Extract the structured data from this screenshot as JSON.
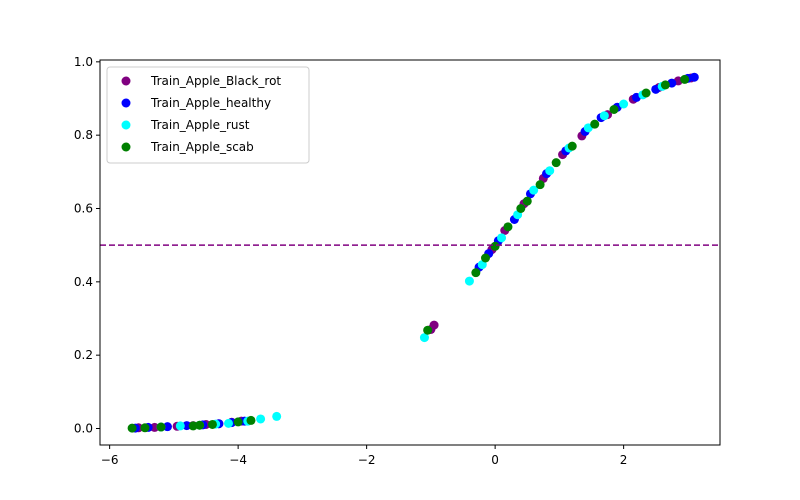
{
  "chart_data": {
    "type": "scatter",
    "xlim": [
      -6.15,
      3.5
    ],
    "ylim": [
      -0.045,
      1.005
    ],
    "xticks": [
      -6,
      -4,
      -2,
      0,
      2
    ],
    "xtick_labels": [
      "−6",
      "−4",
      "−2",
      "0",
      "2"
    ],
    "yticks": [
      0.0,
      0.2,
      0.4,
      0.6,
      0.8,
      1.0
    ],
    "ytick_labels": [
      "0.0",
      "0.2",
      "0.4",
      "0.6",
      "0.8",
      "1.0"
    ],
    "grid": false,
    "legend_position": "top-left",
    "reference_line": {
      "y": 0.5,
      "style": "dashed",
      "color": "#800080"
    },
    "series": [
      {
        "name": "Train_Apple_Black_rot",
        "color": "#800080",
        "x": [
          -5.55,
          -5.3,
          -4.95,
          -4.7,
          -4.5,
          -4.3,
          -4.1,
          -3.95,
          -0.95,
          -1.0,
          -0.05,
          0.15,
          0.45,
          0.75,
          1.05,
          1.35,
          1.75,
          2.15,
          2.55,
          2.85,
          3.05
        ],
        "y": [
          0.002,
          0.003,
          0.006,
          0.008,
          0.011,
          0.013,
          0.017,
          0.02,
          0.282,
          0.27,
          0.488,
          0.54,
          0.613,
          0.682,
          0.747,
          0.798,
          0.856,
          0.898,
          0.93,
          0.948,
          0.956
        ]
      },
      {
        "name": "Train_Apple_healthy",
        "color": "#0000ff",
        "x": [
          -5.6,
          -5.4,
          -5.1,
          -4.8,
          -4.55,
          -4.3,
          -4.1,
          -3.9,
          -0.25,
          -0.1,
          0.05,
          0.3,
          0.55,
          0.8,
          1.1,
          1.4,
          1.65,
          1.9,
          2.2,
          2.5,
          2.75,
          3.0,
          3.1
        ],
        "y": [
          0.001,
          0.003,
          0.005,
          0.008,
          0.01,
          0.013,
          0.016,
          0.02,
          0.44,
          0.477,
          0.512,
          0.57,
          0.64,
          0.695,
          0.757,
          0.81,
          0.848,
          0.876,
          0.903,
          0.925,
          0.942,
          0.955,
          0.958
        ]
      },
      {
        "name": "Train_Apple_rust",
        "color": "#00ffff",
        "x": [
          -5.2,
          -4.9,
          -4.6,
          -4.35,
          -4.15,
          -3.85,
          -3.65,
          -3.4,
          -1.1,
          -0.4,
          -0.2,
          0.1,
          0.35,
          0.6,
          0.85,
          1.15,
          1.45,
          1.7,
          2.0,
          2.3,
          2.6
        ],
        "y": [
          0.004,
          0.007,
          0.009,
          0.012,
          0.014,
          0.02,
          0.026,
          0.033,
          0.248,
          0.402,
          0.447,
          0.52,
          0.583,
          0.65,
          0.703,
          0.765,
          0.82,
          0.853,
          0.885,
          0.91,
          0.933
        ]
      },
      {
        "name": "Train_Apple_scab",
        "color": "#008000",
        "x": [
          -5.65,
          -5.45,
          -5.2,
          -4.7,
          -4.6,
          -4.4,
          -4.0,
          -3.8,
          -1.05,
          -0.3,
          -0.15,
          0.0,
          0.2,
          0.4,
          0.5,
          0.7,
          0.95,
          1.2,
          1.55,
          1.85,
          2.35,
          2.65,
          2.95
        ],
        "y": [
          0.001,
          0.002,
          0.004,
          0.007,
          0.009,
          0.011,
          0.018,
          0.022,
          0.268,
          0.425,
          0.465,
          0.497,
          0.55,
          0.6,
          0.62,
          0.665,
          0.725,
          0.77,
          0.83,
          0.87,
          0.915,
          0.937,
          0.952
        ]
      }
    ]
  }
}
